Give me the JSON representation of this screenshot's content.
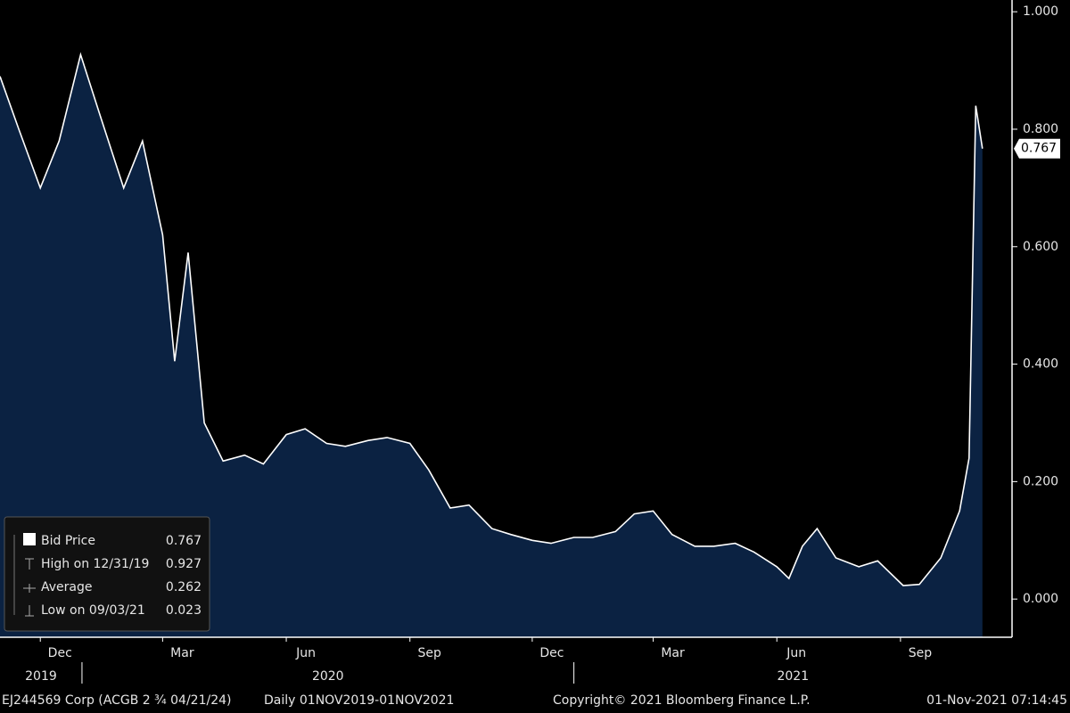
{
  "chart_data": {
    "type": "area",
    "x": [
      "2019-11-01",
      "2019-11-15",
      "2019-12-01",
      "2019-12-15",
      "2019-12-31",
      "2020-01-15",
      "2020-02-01",
      "2020-02-15",
      "2020-03-01",
      "2020-03-10",
      "2020-03-20",
      "2020-04-01",
      "2020-04-15",
      "2020-05-01",
      "2020-05-15",
      "2020-06-01",
      "2020-06-15",
      "2020-07-01",
      "2020-07-15",
      "2020-08-01",
      "2020-08-15",
      "2020-09-01",
      "2020-09-15",
      "2020-10-01",
      "2020-10-15",
      "2020-11-01",
      "2020-11-15",
      "2020-12-01",
      "2020-12-15",
      "2021-01-01",
      "2021-01-15",
      "2021-02-01",
      "2021-02-15",
      "2021-03-01",
      "2021-03-15",
      "2021-04-01",
      "2021-04-15",
      "2021-05-01",
      "2021-05-15",
      "2021-06-01",
      "2021-06-10",
      "2021-06-20",
      "2021-07-01",
      "2021-07-15",
      "2021-08-01",
      "2021-08-15",
      "2021-09-03",
      "2021-09-15",
      "2021-10-01",
      "2021-10-15",
      "2021-10-22",
      "2021-10-27",
      "2021-11-01"
    ],
    "series": [
      {
        "name": "Bid Price",
        "color": "#ffffff",
        "fill": "#0b2242",
        "values": [
          0.89,
          0.8,
          0.7,
          0.78,
          0.927,
          0.82,
          0.7,
          0.78,
          0.62,
          0.405,
          0.59,
          0.3,
          0.235,
          0.245,
          0.23,
          0.28,
          0.29,
          0.265,
          0.26,
          0.27,
          0.275,
          0.265,
          0.22,
          0.155,
          0.16,
          0.12,
          0.11,
          0.1,
          0.095,
          0.105,
          0.105,
          0.115,
          0.145,
          0.15,
          0.11,
          0.09,
          0.09,
          0.095,
          0.08,
          0.055,
          0.035,
          0.09,
          0.12,
          0.07,
          0.055,
          0.065,
          0.023,
          0.025,
          0.07,
          0.15,
          0.24,
          0.84,
          0.767
        ]
      }
    ],
    "xlim": [
      "2019-11-01",
      "2021-11-23"
    ],
    "ylim": [
      -0.065,
      1.02
    ],
    "yticks": [
      {
        "value": 0,
        "label": "0.000"
      },
      {
        "value": 0.2,
        "label": "0.200"
      },
      {
        "value": 0.4,
        "label": "0.400"
      },
      {
        "value": 0.6,
        "label": "0.600"
      },
      {
        "value": 0.8,
        "label": "0.800"
      },
      {
        "value": 1,
        "label": "1.000"
      }
    ],
    "xticks": [
      {
        "value": "2019-12-01",
        "label": "Dec"
      },
      {
        "value": "2020-03-01",
        "label": "Mar"
      },
      {
        "value": "2020-06-01",
        "label": "Jun"
      },
      {
        "value": "2020-09-01",
        "label": "Sep"
      },
      {
        "value": "2020-12-01",
        "label": "Dec"
      },
      {
        "value": "2021-03-01",
        "label": "Mar"
      },
      {
        "value": "2021-06-01",
        "label": "Jun"
      },
      {
        "value": "2021-09-01",
        "label": "Sep"
      }
    ],
    "year_ticks": [
      {
        "value": "2019-01-01",
        "label": "2019"
      },
      {
        "value": "2020-01-01",
        "label": "2020"
      },
      {
        "value": "2021-01-01",
        "label": "2021"
      }
    ],
    "legend": {
      "stats": [
        {
          "label": "High on 12/31/19",
          "value": 0.927
        },
        {
          "label": "Average",
          "value": 0.262
        },
        {
          "label": "Low on 09/03/21",
          "value": 0.023
        }
      ]
    },
    "footer": {
      "security": "EJ244569 Corp (ACGB 2 ¾ 04/21/24)",
      "period": "Daily 01NOV2019-01NOV2021",
      "copyright": "Copyright© 2021 Bloomberg Finance L.P.",
      "timestamp": "01-Nov-2021 07:14:45"
    }
  }
}
